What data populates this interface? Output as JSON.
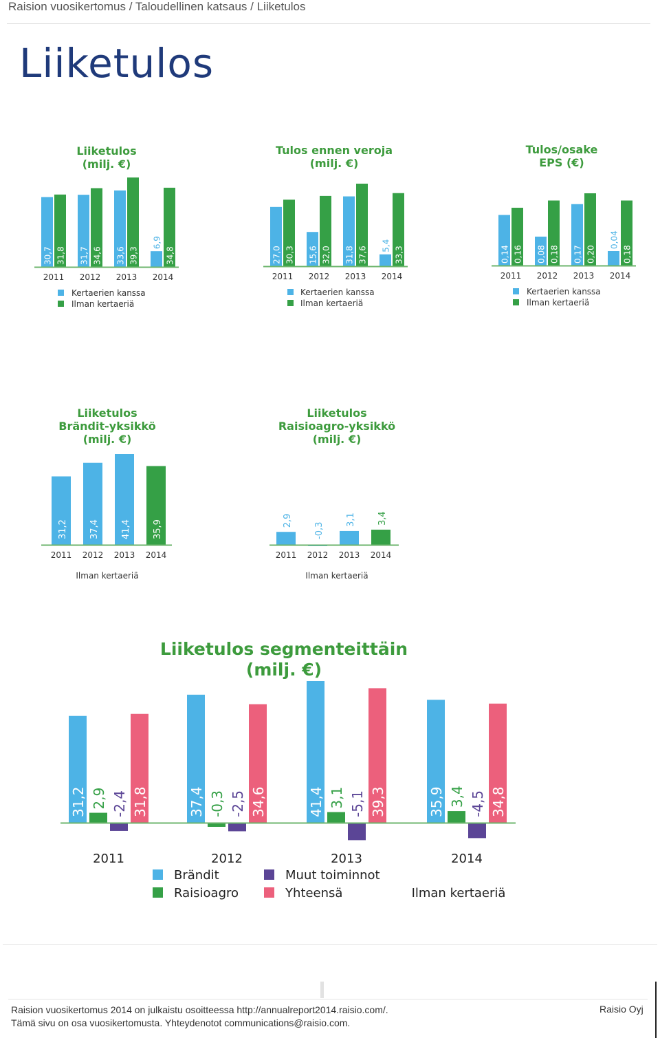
{
  "breadcrumb": "Raision vuosikertomus / Taloudellinen katsaus / Liiketulos",
  "page_title": "Liiketulos",
  "colors": {
    "blue": "#4db3e6",
    "green": "#35a046",
    "purple": "#5b4596",
    "pink": "#ec607c",
    "title_green": "#3d9b3d",
    "axis_green": "#6db56d"
  },
  "chart_data": [
    {
      "type": "bar",
      "title": "Liiketulos",
      "subtitle": "(milj. €)",
      "categories": [
        "2011",
        "2012",
        "2013",
        "2014"
      ],
      "series": [
        {
          "name": "Kertaerien kanssa",
          "values": [
            30.7,
            31.7,
            33.6,
            6.9
          ],
          "labels": [
            "30,7",
            "31,7",
            "33,6",
            "6,9"
          ],
          "color": "#4db3e6"
        },
        {
          "name": "Ilman kertaeriä",
          "values": [
            31.8,
            34.6,
            39.3,
            34.8
          ],
          "labels": [
            "31,8",
            "34,6",
            "39,3",
            "34,8"
          ],
          "color": "#35a046"
        }
      ]
    },
    {
      "type": "bar",
      "title": "Tulos ennen veroja",
      "subtitle": "(milj. €)",
      "categories": [
        "2011",
        "2012",
        "2013",
        "2014"
      ],
      "series": [
        {
          "name": "Kertaerien kanssa",
          "values": [
            27.0,
            15.6,
            31.8,
            5.4
          ],
          "labels": [
            "27,0",
            "15,6",
            "31,8",
            "5,4"
          ],
          "color": "#4db3e6"
        },
        {
          "name": "Ilman kertaeriä",
          "values": [
            30.3,
            32.0,
            37.6,
            33.3
          ],
          "labels": [
            "30,3",
            "32,0",
            "37,6",
            "33,3"
          ],
          "color": "#35a046"
        }
      ]
    },
    {
      "type": "bar",
      "title": "Tulos/osake",
      "subtitle": "EPS (€)",
      "categories": [
        "2011",
        "2012",
        "2013",
        "2014"
      ],
      "series": [
        {
          "name": "Kertaerien kanssa",
          "values": [
            0.14,
            0.08,
            0.17,
            0.04
          ],
          "labels": [
            "0,14",
            "0,08",
            "0,17",
            "0,04"
          ],
          "color": "#4db3e6"
        },
        {
          "name": "Ilman kertaeriä",
          "values": [
            0.16,
            0.18,
            0.2,
            0.18
          ],
          "labels": [
            "0,16",
            "0,18",
            "0,20",
            "0,18"
          ],
          "color": "#35a046"
        }
      ]
    },
    {
      "type": "bar",
      "title": "Liiketulos",
      "title2": "Brändit-yksikkö",
      "subtitle": "(milj. €)",
      "note": "Ilman kertaeriä",
      "categories": [
        "2011",
        "2012",
        "2013",
        "2014"
      ],
      "values": [
        31.2,
        37.4,
        41.4,
        35.9
      ],
      "labels": [
        "31,2",
        "37,4",
        "41,4",
        "35,9"
      ],
      "bar_colors": [
        "#4db3e6",
        "#4db3e6",
        "#4db3e6",
        "#35a046"
      ]
    },
    {
      "type": "bar",
      "title": "Liiketulos",
      "title2": "Raisioagro-yksikkö",
      "subtitle": "(milj. €)",
      "note": "Ilman kertaeriä",
      "categories": [
        "2011",
        "2012",
        "2013",
        "2014"
      ],
      "values": [
        2.9,
        -0.3,
        3.1,
        3.4
      ],
      "labels": [
        "2,9",
        "-0,3",
        "3,1",
        "3,4"
      ],
      "bar_colors": [
        "#4db3e6",
        "#4db3e6",
        "#4db3e6",
        "#35a046"
      ]
    },
    {
      "type": "bar",
      "title": "Liiketulos segmenteittäin",
      "subtitle": "(milj. €)",
      "note": "Ilman kertaeriä",
      "categories": [
        "2011",
        "2012",
        "2013",
        "2014"
      ],
      "series": [
        {
          "name": "Brändit",
          "values": [
            31.2,
            37.4,
            41.4,
            35.9
          ],
          "labels": [
            "31,2",
            "37,4",
            "41,4",
            "35,9"
          ],
          "color": "#4db3e6"
        },
        {
          "name": "Raisioagro",
          "values": [
            2.9,
            -0.3,
            3.1,
            3.4
          ],
          "labels": [
            "2,9",
            "-0,3",
            "3,1",
            "3,4"
          ],
          "color": "#35a046"
        },
        {
          "name": "Muut toiminnot",
          "values": [
            -2.4,
            -2.5,
            -5.1,
            -4.5
          ],
          "labels": [
            "-2,4",
            "-2,5",
            "-5,1",
            "-4,5"
          ],
          "color": "#5b4596"
        },
        {
          "name": "Yhteensä",
          "values": [
            31.8,
            34.6,
            39.3,
            34.8
          ],
          "labels": [
            "31,8",
            "34,6",
            "39,3",
            "34,8"
          ],
          "color": "#ec607c"
        }
      ]
    }
  ],
  "footer": {
    "line1": "Raision vuosikertomus 2014 on julkaistu osoitteessa http://annualreport2014.raisio.com/.",
    "line2": "Tämä sivu on osa vuosikertomusta. Yhteydenotot communications@raisio.com.",
    "company": "Raisio Oyj"
  }
}
